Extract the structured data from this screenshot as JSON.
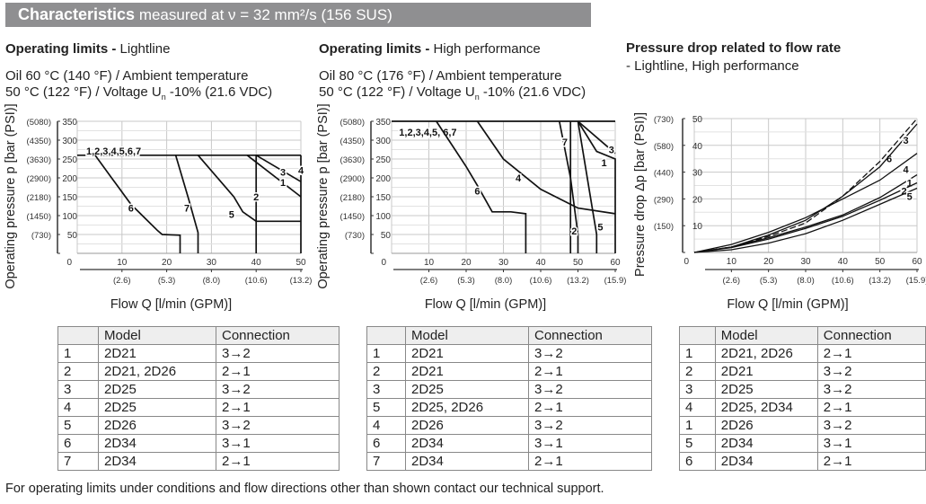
{
  "header": {
    "title": "Characteristics",
    "subtitle": "measured at ν = 32 mm²/s (156 SUS)"
  },
  "panels": [
    {
      "title_bold": "Operating limits -",
      "title_rest": "Lightline",
      "line1": "Oil 60 °C (140 °F) / Ambient temperature",
      "line2_a": "50 °C (122 °F) / Voltage U",
      "line2_sub": "n",
      "line2_b": " -10% (21.6 VDC)"
    },
    {
      "title_bold": "Operating limits -",
      "title_rest": "High performance",
      "line1": "Oil 80 °C (176 °F) / Ambient temperature",
      "line2_a": "50 °C (122 °F) / Voltage U",
      "line2_sub": "n",
      "line2_b": " -10% (21.6 VDC)"
    },
    {
      "title_bold": "Pressure drop related to flow rate",
      "title_rest": "- Lightline, High performance"
    }
  ],
  "tables": [
    {
      "headers": [
        "",
        "Model",
        "Connection"
      ],
      "rows": [
        [
          "1",
          "2D21",
          "3→2"
        ],
        [
          "2",
          "2D21, 2D26",
          "2→1"
        ],
        [
          "3",
          "2D25",
          "3→2"
        ],
        [
          "4",
          "2D25",
          "2→1"
        ],
        [
          "5",
          "2D26",
          "3→2"
        ],
        [
          "6",
          "2D34",
          "3→1"
        ],
        [
          "7",
          "2D34",
          "2→1"
        ]
      ]
    },
    {
      "headers": [
        "",
        "Model",
        "Connection"
      ],
      "rows": [
        [
          "1",
          "2D21",
          "3→2"
        ],
        [
          "2",
          "2D21",
          "2→1"
        ],
        [
          "3",
          "2D25",
          "3→2"
        ],
        [
          "5",
          "2D25,  2D26",
          "2→1"
        ],
        [
          "4",
          "2D26",
          "3→2"
        ],
        [
          "6",
          "2D34",
          "3→1"
        ],
        [
          "7",
          "2D34",
          "2→1"
        ]
      ]
    },
    {
      "headers": [
        "",
        "Model",
        "Connection"
      ],
      "rows": [
        [
          "1",
          "2D21, 2D26",
          "2→1"
        ],
        [
          "2",
          "2D21",
          "3→2"
        ],
        [
          "3",
          "2D25",
          "3→2"
        ],
        [
          "4",
          "2D25, 2D34",
          "2→1"
        ],
        [
          "1",
          "2D26",
          "3→2"
        ],
        [
          "5",
          "2D34",
          "3→1"
        ],
        [
          "6",
          "2D34",
          "2→1"
        ]
      ]
    }
  ],
  "footer": "For operating limits under conditions and flow directions other than shown contact our technical support.",
  "chart_data": [
    {
      "type": "line",
      "xlabel": "Flow Q [l/min (GPM)]",
      "ylabel": "Operating pressure p [bar (PSI)]",
      "xlim": [
        0,
        50
      ],
      "ylim": [
        0,
        350
      ],
      "grid": true,
      "xticks": [
        "0",
        "10",
        "20",
        "30",
        "40",
        "50"
      ],
      "xticks_gpm": [
        "(2.6)",
        "(5.3)",
        "(8.0)",
        "(10.6)",
        "(13.2)"
      ],
      "yticks": [
        "50",
        "100",
        "150",
        "200",
        "250",
        "300",
        "350"
      ],
      "yticks_psi": [
        "(730)",
        "(1450)",
        "(2180)",
        "(2900)",
        "(3630)",
        "(4350)",
        "(5080)"
      ],
      "series": [
        {
          "name": "1,2,3,4,5,6,7",
          "points": [
            [
              0,
              260
            ],
            [
              50,
              260
            ]
          ]
        },
        {
          "name": "6",
          "points": [
            [
              4,
              260
            ],
            [
              8,
              195
            ],
            [
              12,
              130
            ],
            [
              15,
              95
            ],
            [
              18,
              60
            ],
            [
              19,
              50
            ],
            [
              23,
              48
            ],
            [
              23,
              0
            ]
          ]
        },
        {
          "name": "7",
          "points": [
            [
              22,
              260
            ],
            [
              25,
              140
            ],
            [
              27,
              55
            ],
            [
              27,
              0
            ]
          ]
        },
        {
          "name": "5",
          "points": [
            [
              27,
              260
            ],
            [
              35,
              150
            ],
            [
              37,
              110
            ],
            [
              40,
              85
            ],
            [
              50,
              85
            ]
          ]
        },
        {
          "name": "2",
          "points": [
            [
              40,
              260
            ],
            [
              40,
              0
            ]
          ]
        },
        {
          "name": "1",
          "points": [
            [
              38,
              260
            ],
            [
              50,
              150
            ]
          ]
        },
        {
          "name": "3",
          "points": [
            [
              40,
              260
            ],
            [
              50,
              190
            ]
          ]
        },
        {
          "name": "4",
          "points": [
            [
              50,
              260
            ],
            [
              50,
              0
            ]
          ]
        }
      ]
    },
    {
      "type": "line",
      "xlabel": "Flow Q [l/min (GPM)]",
      "ylabel": "Operating pressure p [bar (PSI)]",
      "xlim": [
        0,
        60
      ],
      "ylim": [
        0,
        350
      ],
      "grid": true,
      "xticks": [
        "0",
        "10",
        "20",
        "30",
        "40",
        "50",
        "60"
      ],
      "xticks_gpm": [
        "(2.6)",
        "(5.3)",
        "(8.0)",
        "(10.6)",
        "(13.2)",
        "(15.9)"
      ],
      "yticks": [
        "50",
        "100",
        "150",
        "200",
        "250",
        "300",
        "350"
      ],
      "yticks_psi": [
        "(730)",
        "(1450)",
        "(2180)",
        "(2900)",
        "(3630)",
        "(4350)",
        "(5080)"
      ],
      "series": [
        {
          "name": "1,2,3,4,5, 6,7",
          "points": [
            [
              0,
              350
            ],
            [
              60,
              350
            ]
          ]
        },
        {
          "name": "6",
          "points": [
            [
              12,
              350
            ],
            [
              20,
              230
            ],
            [
              23,
              180
            ],
            [
              27,
              110
            ],
            [
              32,
              110
            ],
            [
              36,
              105
            ],
            [
              36,
              0
            ]
          ]
        },
        {
          "name": "4",
          "points": [
            [
              23,
              350
            ],
            [
              30,
              250
            ],
            [
              40,
              170
            ],
            [
              50,
              120
            ],
            [
              60,
              105
            ]
          ]
        },
        {
          "name": "7",
          "points": [
            [
              45,
              350
            ],
            [
              48,
              200
            ],
            [
              50,
              50
            ],
            [
              50,
              0
            ]
          ]
        },
        {
          "name": "2",
          "points": [
            [
              48,
              350
            ],
            [
              48,
              0
            ]
          ]
        },
        {
          "name": "5",
          "points": [
            [
              50,
              350
            ],
            [
              54,
              110
            ],
            [
              55,
              50
            ],
            [
              55,
              0
            ]
          ]
        },
        {
          "name": "1",
          "points": [
            [
              50,
              350
            ],
            [
              55,
              270
            ],
            [
              60,
              250
            ],
            [
              60,
              0
            ]
          ]
        },
        {
          "name": "3",
          "points": [
            [
              50,
              350
            ],
            [
              60,
              265
            ]
          ]
        }
      ]
    },
    {
      "type": "line",
      "xlabel": "Flow Q [l/min (GPM)]",
      "ylabel": "Pressure drop Δp [bar (PSI)]",
      "xlim": [
        0,
        60
      ],
      "ylim": [
        0,
        50
      ],
      "grid": true,
      "xticks": [
        "0",
        "10",
        "20",
        "30",
        "40",
        "50",
        "60"
      ],
      "xticks_gpm": [
        "(2.6)",
        "(5.3)",
        "(8.0)",
        "(10.6)",
        "(13.2)",
        "(15.9)"
      ],
      "yticks": [
        "10",
        "20",
        "30",
        "40",
        "50"
      ],
      "yticks_psi": [
        "(150)",
        "(290)",
        "(440)",
        "(580)",
        "(730)"
      ],
      "series": [
        {
          "name": "6",
          "dashed": true,
          "points": [
            [
              0,
              0
            ],
            [
              10,
              2
            ],
            [
              20,
              6
            ],
            [
              30,
              11
            ],
            [
              40,
              21
            ],
            [
              50,
              34
            ],
            [
              60,
              50
            ]
          ]
        },
        {
          "name": "3",
          "points": [
            [
              0,
              0
            ],
            [
              10,
              2
            ],
            [
              20,
              6.5
            ],
            [
              30,
              12
            ],
            [
              40,
              21
            ],
            [
              50,
              32
            ],
            [
              60,
              48
            ]
          ]
        },
        {
          "name": "4",
          "points": [
            [
              0,
              0
            ],
            [
              10,
              3
            ],
            [
              20,
              7.5
            ],
            [
              30,
              13
            ],
            [
              40,
              20
            ],
            [
              50,
              27
            ],
            [
              60,
              37
            ]
          ]
        },
        {
          "name": "1",
          "points": [
            [
              0,
              0
            ],
            [
              10,
              2
            ],
            [
              20,
              5.5
            ],
            [
              30,
              9.5
            ],
            [
              40,
              14
            ],
            [
              50,
              20.5
            ],
            [
              60,
              29
            ]
          ]
        },
        {
          "name": "2",
          "points": [
            [
              0,
              0
            ],
            [
              10,
              1.8
            ],
            [
              20,
              5
            ],
            [
              30,
              9
            ],
            [
              40,
              13.5
            ],
            [
              50,
              19.5
            ],
            [
              60,
              26
            ]
          ]
        },
        {
          "name": "5",
          "points": [
            [
              0,
              0
            ],
            [
              10,
              1
            ],
            [
              20,
              3.5
            ],
            [
              30,
              7
            ],
            [
              40,
              12
            ],
            [
              50,
              18
            ],
            [
              60,
              24
            ]
          ]
        }
      ]
    }
  ]
}
